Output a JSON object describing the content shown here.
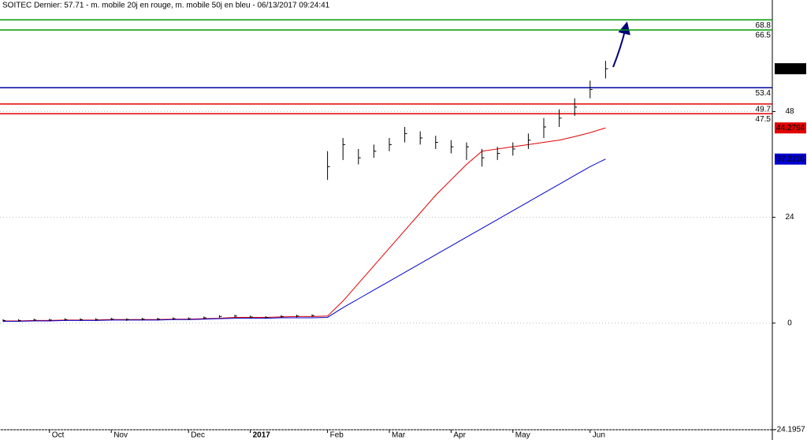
{
  "chart_data": {
    "type": "ohlc",
    "title": "SOITEC Dernier: 57.71 - m. mobile 20j en rouge, m. mobile 50j en bleu - 06/13/2017 09:24:41",
    "categories": [
      null,
      null,
      null,
      "Oct",
      null,
      null,
      null,
      "Nov",
      null,
      null,
      null,
      null,
      "Dec",
      null,
      null,
      null,
      "2017",
      null,
      null,
      null,
      null,
      "Feb",
      null,
      null,
      null,
      "Mar",
      null,
      null,
      null,
      "Apr",
      null,
      null,
      null,
      "May",
      null,
      null,
      null,
      null,
      "Jun",
      null
    ],
    "high": [
      0.9,
      0.9,
      1.0,
      1.0,
      1.1,
      1.1,
      1.1,
      1.2,
      1.1,
      1.2,
      1.2,
      1.3,
      1.3,
      1.5,
      1.8,
      1.9,
      1.7,
      1.6,
      1.8,
      1.9,
      2.0,
      39,
      42,
      39.5,
      40.5,
      42,
      44.5,
      43.5,
      42.5,
      41.5,
      41,
      39.5,
      40,
      41,
      43,
      46.5,
      48.5,
      51,
      55,
      59.5
    ],
    "low": [
      0.3,
      0.3,
      0.4,
      0.4,
      0.5,
      0.5,
      0.5,
      0.6,
      0.5,
      0.6,
      0.6,
      0.7,
      0.7,
      0.9,
      1.2,
      1.3,
      1.1,
      1.0,
      1.2,
      1.3,
      1.4,
      32.5,
      37,
      36,
      37.5,
      39,
      41,
      40.5,
      39.5,
      38.5,
      37,
      35.5,
      37,
      38,
      39.5,
      42,
      44.5,
      47,
      51,
      55.5
    ],
    "close": [
      0.6,
      0.6,
      0.7,
      0.7,
      0.8,
      0.8,
      0.8,
      0.9,
      0.8,
      0.9,
      0.9,
      1.0,
      1.0,
      1.2,
      1.5,
      1.6,
      1.4,
      1.3,
      1.5,
      1.6,
      1.7,
      35.5,
      40.5,
      37.5,
      39,
      40.5,
      43,
      42,
      41,
      40,
      40,
      37.5,
      38.5,
      39.5,
      41.5,
      44.5,
      46.5,
      49,
      53,
      57.71
    ],
    "color": "#000000",
    "lines": [
      {
        "color": "#e00000",
        "values": [
          0.5,
          0.5,
          0.6,
          0.6,
          0.7,
          0.7,
          0.7,
          0.8,
          0.8,
          0.8,
          0.8,
          0.9,
          0.9,
          1.0,
          1.1,
          1.3,
          1.3,
          1.3,
          1.4,
          1.5,
          1.5,
          1.6,
          5,
          9,
          13,
          17,
          21,
          25,
          29,
          32.5,
          36,
          39,
          39.5,
          40,
          40.5,
          41,
          41.5,
          42.3,
          43.2,
          44.2794
        ]
      },
      {
        "color": "#0000d0",
        "values": [
          0.4,
          0.4,
          0.5,
          0.5,
          0.6,
          0.6,
          0.6,
          0.7,
          0.7,
          0.7,
          0.7,
          0.8,
          0.8,
          0.9,
          1.0,
          1.1,
          1.1,
          1.1,
          1.2,
          1.2,
          1.2,
          1.3,
          3.5,
          5.5,
          7.5,
          9.5,
          11.5,
          13.5,
          15.5,
          17.5,
          19.5,
          21.5,
          23.5,
          25.5,
          27.5,
          29.5,
          31.5,
          33.5,
          35.5,
          37.2118
        ]
      }
    ],
    "levels": [
      {
        "value": 68.8,
        "color": "#009a00"
      },
      {
        "value": 66.5,
        "color": "#009a00"
      },
      {
        "value": 53.4,
        "color": "#0000a0"
      },
      {
        "value": 49.7,
        "color": "#e00000"
      },
      {
        "value": 47.5,
        "color": "#e00000"
      }
    ],
    "ylim": [
      -24.1957,
      73.3
    ],
    "yticks": [
      -24.1957,
      0,
      24,
      48
    ],
    "grid": true
  }
}
